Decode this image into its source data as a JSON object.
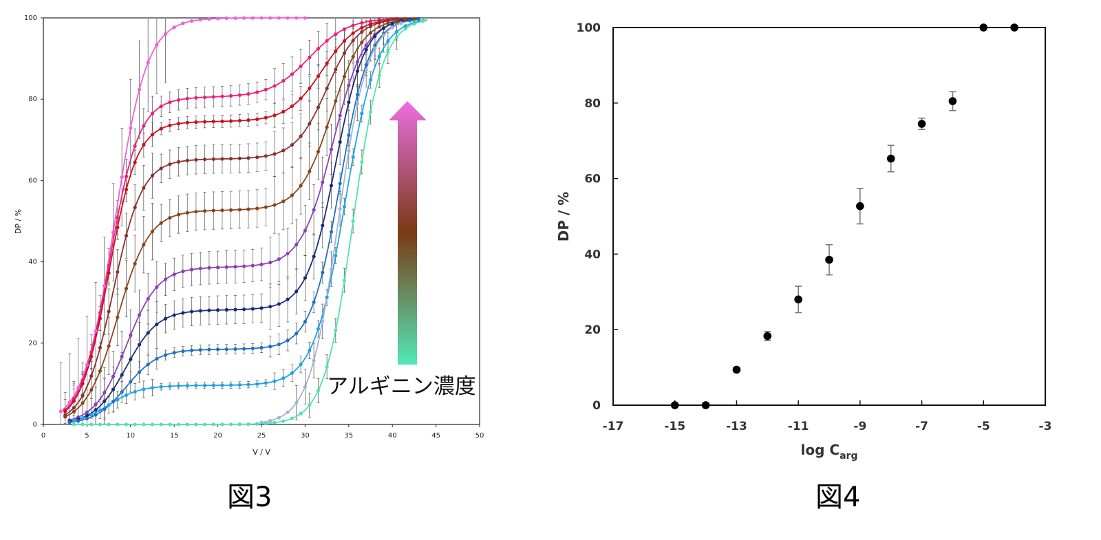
{
  "captions": {
    "fig3": "図3",
    "fig4": "図4"
  },
  "arrow": {
    "label": "アルギニン濃度",
    "gradient_top": "#ec6fe3",
    "gradient_mid": "#7a3a14",
    "gradient_bottom": "#52e8b6"
  },
  "chart_data": [
    {
      "type": "line",
      "xlabel": "V / V",
      "ylabel": "DP / %",
      "xlim": [
        0,
        50
      ],
      "ylim": [
        0,
        100
      ],
      "xticks": [
        0,
        5,
        10,
        15,
        20,
        25,
        30,
        35,
        40,
        45,
        50
      ],
      "yticks": [
        0,
        20,
        40,
        60,
        80,
        100
      ],
      "grid": false,
      "series": [
        {
          "color": "#f15fd8",
          "plateau": 100,
          "mid1": 8.2,
          "k1": 0.55,
          "x_start": 2.0,
          "x_end": 30,
          "err": 10,
          "markers": true
        },
        {
          "color": "#ee1f78",
          "plateau": 80.5,
          "mid1": 7.6,
          "k1": 0.6,
          "mid2": 30.5,
          "k2": 0.45,
          "x_start": 2.5,
          "x_end": 41,
          "err": 2.5
        },
        {
          "color": "#c8101e",
          "plateau": 74.5,
          "mid1": 7.5,
          "k1": 0.62,
          "mid2": 32.0,
          "k2": 0.5,
          "x_start": 2.5,
          "x_end": 42,
          "err": 1.5
        },
        {
          "color": "#8b3030",
          "plateau": 65.3,
          "mid1": 8.0,
          "k1": 0.6,
          "mid2": 32.5,
          "k2": 0.55,
          "x_start": 2.5,
          "x_end": 42,
          "err": 3.5
        },
        {
          "color": "#8b4513",
          "plateau": 52.7,
          "mid1": 8.5,
          "k1": 0.55,
          "mid2": 33.0,
          "k2": 0.55,
          "x_start": 2.5,
          "x_end": 43,
          "err": 4.6
        },
        {
          "color": "#8a3fb5",
          "plateau": 38.7,
          "mid1": 9.5,
          "k1": 0.55,
          "mid2": 33.2,
          "k2": 0.55,
          "x_start": 3.0,
          "x_end": 43,
          "err": 4.0
        },
        {
          "color": "#1a2a78",
          "plateau": 28.2,
          "mid1": 9.5,
          "k1": 0.55,
          "mid2": 33.5,
          "k2": 0.6,
          "x_start": 3.0,
          "x_end": 43,
          "err": 3.5
        },
        {
          "color": "#1f6fc2",
          "plateau": 18.5,
          "mid1": 9.5,
          "k1": 0.55,
          "mid2": 34.0,
          "k2": 0.6,
          "x_start": 3.0,
          "x_end": 43,
          "err": 1.2
        },
        {
          "color": "#1aa6e6",
          "plateau": 9.6,
          "mid1": 7.5,
          "k1": 0.55,
          "mid2": 34.6,
          "k2": 0.55,
          "x_start": 3.5,
          "x_end": 44,
          "err": 0.8
        },
        {
          "color": "#9fb4d8",
          "plateau": 0,
          "mid2": 33.8,
          "k2": 0.6,
          "x_start": 25,
          "x_end": 41,
          "err": 2.5
        },
        {
          "color": "#4fe3b0",
          "plateau": 0,
          "mid2": 35.5,
          "k2": 0.6,
          "x_start": 3.5,
          "x_end": 44,
          "err": 1.5
        }
      ]
    },
    {
      "type": "scatter",
      "xlabel": "log C",
      "xlabel_sub": "arg",
      "ylabel": "DP / %",
      "xlim": [
        -17,
        -3
      ],
      "ylim": [
        0,
        100
      ],
      "xticks": [
        -17,
        -15,
        -13,
        -11,
        -9,
        -7,
        -5,
        -3
      ],
      "yticks": [
        0,
        20,
        40,
        60,
        80,
        100
      ],
      "grid": false,
      "points": [
        {
          "x": -15,
          "y": 0,
          "err": 0
        },
        {
          "x": -14,
          "y": 0,
          "err": 0
        },
        {
          "x": -13,
          "y": 9.4,
          "err": 0.6
        },
        {
          "x": -12,
          "y": 18.3,
          "err": 1.2
        },
        {
          "x": -11,
          "y": 28.0,
          "err": 3.5
        },
        {
          "x": -10,
          "y": 38.5,
          "err": 4.0
        },
        {
          "x": -9,
          "y": 52.7,
          "err": 4.7
        },
        {
          "x": -8,
          "y": 65.3,
          "err": 3.5
        },
        {
          "x": -7,
          "y": 74.5,
          "err": 1.5
        },
        {
          "x": -6,
          "y": 80.5,
          "err": 2.5
        },
        {
          "x": -5,
          "y": 100,
          "err": 0
        },
        {
          "x": -4,
          "y": 100,
          "err": 0
        }
      ]
    }
  ]
}
